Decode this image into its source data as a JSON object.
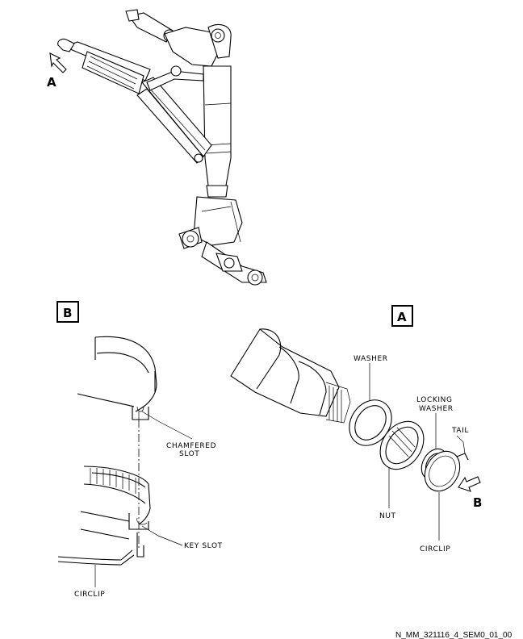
{
  "views": {
    "a_arrow_label": "A",
    "b_box_label": "B",
    "a_box_label": "A",
    "b_arrow_label": "B"
  },
  "callouts": {
    "washer": "WASHER",
    "locking_washer_line1": "LOCKING",
    "locking_washer_line2": "WASHER",
    "tail": "TAIL",
    "nut": "NUT",
    "circlip_right": "CIRCLIP",
    "chamfered_slot_line1": "CHAMFERED",
    "chamfered_slot_line2": "SLOT",
    "key_slot": "KEY SLOT",
    "circlip_left": "CIRCLIP"
  },
  "figure_ref": "N_MM_321116_4_SEM0_01_00"
}
